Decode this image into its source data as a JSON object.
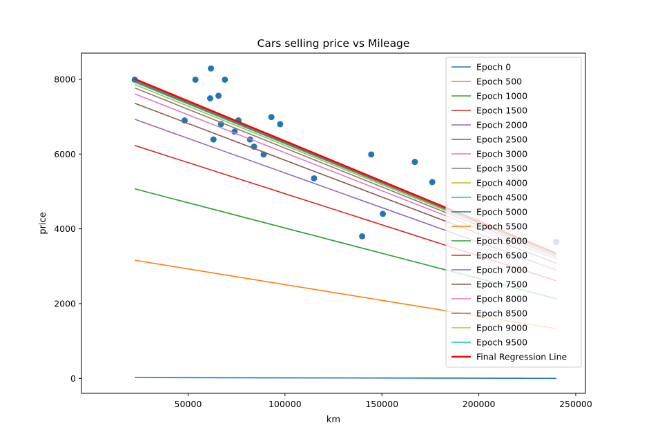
{
  "chart_data": {
    "type": "line",
    "title": "Cars selling price vs Mileage",
    "xlabel": "km",
    "ylabel": "price",
    "xlim": [
      -5000,
      255000
    ],
    "ylim": [
      -400,
      8700
    ],
    "xticks": [
      50000,
      100000,
      150000,
      200000,
      250000
    ],
    "yticks": [
      0,
      2000,
      4000,
      6000,
      8000
    ],
    "grid": false,
    "legend_position": "top-right",
    "line_x": [
      22481,
      240000
    ],
    "scatter": {
      "color": "#1f77b4",
      "points": [
        [
          22481,
          7990
        ],
        [
          48235,
          6900
        ],
        [
          53800,
          7990
        ],
        [
          61400,
          7490
        ],
        [
          61800,
          8290
        ],
        [
          63100,
          6390
        ],
        [
          65700,
          7560
        ],
        [
          67000,
          6800
        ],
        [
          69000,
          7990
        ],
        [
          74000,
          6600
        ],
        [
          76000,
          6900
        ],
        [
          82000,
          6390
        ],
        [
          84000,
          6200
        ],
        [
          89000,
          5990
        ],
        [
          93000,
          6990
        ],
        [
          97500,
          6800
        ],
        [
          115000,
          5350
        ],
        [
          139800,
          3800
        ],
        [
          144500,
          5990
        ],
        [
          150500,
          4400
        ],
        [
          167000,
          5790
        ],
        [
          176000,
          5250
        ],
        [
          240000,
          3650
        ]
      ]
    },
    "series": [
      {
        "name": "Epoch 0",
        "color": "#1f77b4",
        "values": [
          20,
          2
        ]
      },
      {
        "name": "Epoch 500",
        "color": "#ff7f0e",
        "values": [
          3160,
          1330
        ]
      },
      {
        "name": "Epoch 1000",
        "color": "#2ca02c",
        "values": [
          5070,
          2130
        ]
      },
      {
        "name": "Epoch 1500",
        "color": "#d62728",
        "values": [
          6230,
          2610
        ]
      },
      {
        "name": "Epoch 2000",
        "color": "#9467bd",
        "values": [
          6930,
          2900
        ]
      },
      {
        "name": "Epoch 2500",
        "color": "#8c564b",
        "values": [
          7360,
          3080
        ]
      },
      {
        "name": "Epoch 3000",
        "color": "#e377c2",
        "values": [
          7610,
          3190
        ]
      },
      {
        "name": "Epoch 3500",
        "color": "#7f7f7f",
        "values": [
          7770,
          3250
        ]
      },
      {
        "name": "Epoch 4000",
        "color": "#bcbd22",
        "values": [
          7860,
          3290
        ]
      },
      {
        "name": "Epoch 4500",
        "color": "#17becf",
        "values": [
          7920,
          3310
        ]
      },
      {
        "name": "Epoch 5000",
        "color": "#1f77b4",
        "values": [
          7950,
          3320
        ]
      },
      {
        "name": "Epoch 5500",
        "color": "#ff7f0e",
        "values": [
          7970,
          3330
        ]
      },
      {
        "name": "Epoch 6000",
        "color": "#2ca02c",
        "values": [
          7980,
          3335
        ]
      },
      {
        "name": "Epoch 6500",
        "color": "#d62728",
        "values": [
          7990,
          3338
        ]
      },
      {
        "name": "Epoch 7000",
        "color": "#9467bd",
        "values": [
          7995,
          3340
        ]
      },
      {
        "name": "Epoch 7500",
        "color": "#8c564b",
        "values": [
          7998,
          3341
        ]
      },
      {
        "name": "Epoch 8000",
        "color": "#e377c2",
        "values": [
          8000,
          3342
        ]
      },
      {
        "name": "Epoch 8500",
        "color": "#7f7f7f",
        "values": [
          8001,
          3342
        ]
      },
      {
        "name": "Epoch 9000",
        "color": "#bcbd22",
        "values": [
          8002,
          3343
        ]
      },
      {
        "name": "Epoch 9500",
        "color": "#17becf",
        "values": [
          8003,
          3343
        ]
      },
      {
        "name": "Final Regression Line",
        "color": "#ff0000",
        "values": [
          8010,
          3345
        ],
        "bold": true
      }
    ]
  }
}
